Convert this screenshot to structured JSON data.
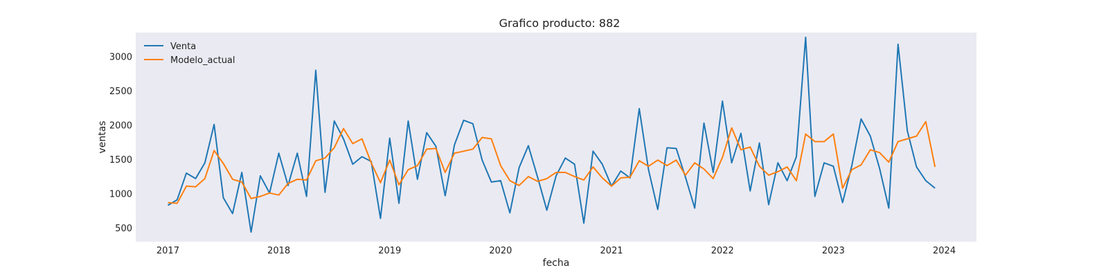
{
  "chart_data": {
    "type": "line",
    "title": "Grafico producto: 882",
    "xlabel": "fecha",
    "ylabel": "ventas",
    "x_start": "2017-01",
    "x_frequency": "monthly",
    "xlim": [
      2016.71,
      2024.29
    ],
    "ylim": [
      300,
      3350
    ],
    "xticks": [
      2017,
      2018,
      2019,
      2020,
      2021,
      2022,
      2023,
      2024
    ],
    "xtick_labels": [
      "2017",
      "2018",
      "2019",
      "2020",
      "2021",
      "2022",
      "2023",
      "2024"
    ],
    "yticks": [
      500,
      1000,
      1500,
      2000,
      2500,
      3000
    ],
    "ytick_labels": [
      "500",
      "1000",
      "1500",
      "2000",
      "2500",
      "3000"
    ],
    "grid": false,
    "legend_position": "top-left",
    "background_color": "#eaeaf2",
    "series": [
      {
        "name": "Venta",
        "color": "#1f77b4",
        "values": [
          830,
          910,
          1300,
          1220,
          1450,
          2010,
          940,
          710,
          1310,
          440,
          1260,
          1010,
          1590,
          1120,
          1590,
          960,
          2800,
          1020,
          2060,
          1800,
          1430,
          1540,
          1470,
          640,
          1810,
          860,
          2060,
          1210,
          1890,
          1690,
          970,
          1710,
          2070,
          2020,
          1490,
          1170,
          1190,
          720,
          1380,
          1700,
          1240,
          760,
          1260,
          1520,
          1430,
          570,
          1620,
          1430,
          1110,
          1330,
          1230,
          2240,
          1350,
          770,
          1670,
          1660,
          1240,
          790,
          2030,
          1310,
          2350,
          1450,
          1880,
          1040,
          1740,
          840,
          1450,
          1190,
          1540,
          3280,
          960,
          1450,
          1400,
          870,
          1410,
          2090,
          1840,
          1370,
          790,
          3180,
          1920,
          1390,
          1190,
          1080
        ]
      },
      {
        "name": "Modelo_actual",
        "color": "#ff7f0e",
        "values": [
          870,
          860,
          1110,
          1100,
          1220,
          1630,
          1440,
          1210,
          1170,
          930,
          960,
          1010,
          980,
          1150,
          1210,
          1200,
          1480,
          1520,
          1670,
          1950,
          1730,
          1800,
          1450,
          1160,
          1490,
          1130,
          1350,
          1410,
          1650,
          1660,
          1310,
          1590,
          1620,
          1650,
          1820,
          1800,
          1410,
          1190,
          1120,
          1250,
          1180,
          1220,
          1310,
          1310,
          1250,
          1200,
          1390,
          1230,
          1110,
          1230,
          1240,
          1480,
          1400,
          1490,
          1410,
          1490,
          1270,
          1450,
          1360,
          1220,
          1530,
          1960,
          1640,
          1680,
          1400,
          1270,
          1320,
          1390,
          1190,
          1870,
          1760,
          1760,
          1870,
          1080,
          1350,
          1420,
          1640,
          1600,
          1460,
          1760,
          1800,
          1840,
          2050,
          1390
        ]
      }
    ]
  }
}
